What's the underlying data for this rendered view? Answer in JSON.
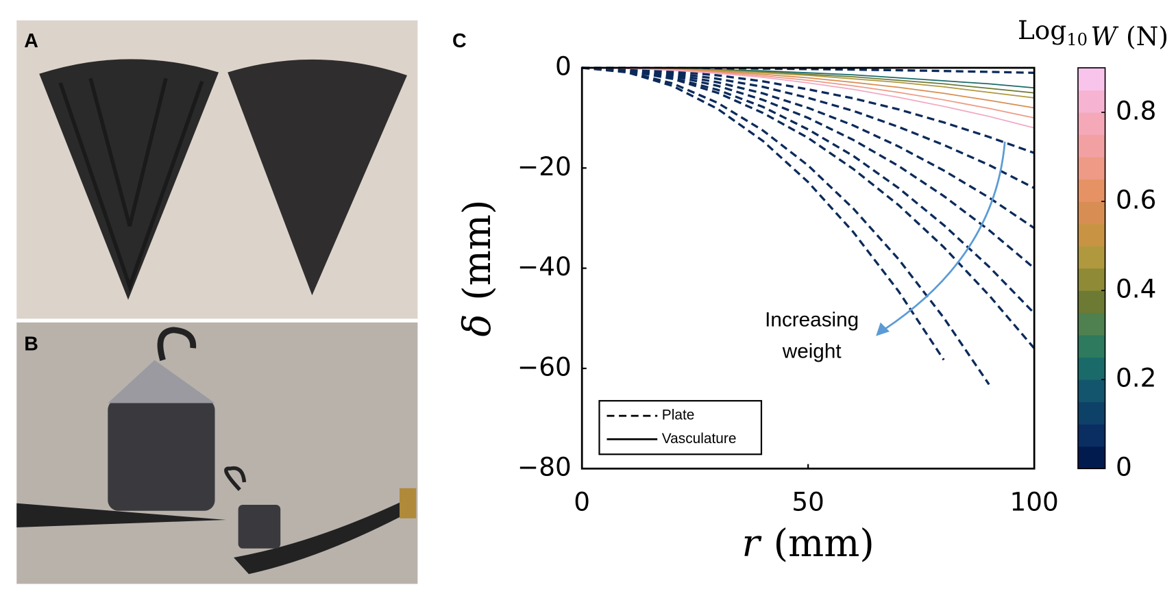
{
  "panels": {
    "a": "A",
    "b": "B",
    "c": "C"
  },
  "chart_data": {
    "type": "line",
    "x": [
      0,
      10,
      20,
      30,
      40,
      50,
      60,
      70,
      80,
      90,
      100
    ],
    "xlim": [
      0,
      100
    ],
    "ylim": [
      -80,
      0
    ],
    "xticks": [
      0,
      50,
      100
    ],
    "yticks": [
      0,
      {
        "value": -20,
        "label": "−20"
      },
      {
        "value": -40,
        "label": "−40"
      },
      {
        "value": -60,
        "label": "−60"
      },
      {
        "value": -80,
        "label": "−80"
      }
    ],
    "xlabel": {
      "italic": "r",
      "rest": "(mm)"
    },
    "ylabel": {
      "italic": "δ",
      "rest": "(mm)"
    },
    "series": [
      {
        "color": "#0b2a5a",
        "dash": true,
        "values": [
          0,
          -0.01,
          -0.04,
          -0.09,
          -0.16,
          -0.25,
          -0.36,
          -0.49,
          -0.64,
          -0.81,
          -1
        ]
      },
      {
        "color": "#0b2a5a",
        "dash": true,
        "values": [
          0,
          -0.2,
          -0.7,
          -1.5,
          -2.7,
          -4.3,
          -6.1,
          -8.3,
          -10.9,
          -13.8,
          -17
        ]
      },
      {
        "color": "#0b2a5a",
        "dash": true,
        "values": [
          0,
          -0.2,
          -1,
          -2.2,
          -3.8,
          -6,
          -8.6,
          -11.8,
          -15.4,
          -19.4,
          -24
        ]
      },
      {
        "color": "#0b2a5a",
        "dash": true,
        "values": [
          0,
          -0.3,
          -1.3,
          -2.9,
          -5.1,
          -8,
          -11.5,
          -15.7,
          -20.5,
          -25.9,
          -32
        ]
      },
      {
        "color": "#0b2a5a",
        "dash": true,
        "values": [
          0,
          -0.4,
          -1.6,
          -3.6,
          -6.4,
          -10,
          -14.4,
          -19.6,
          -25.6,
          -32.4,
          -40
        ]
      },
      {
        "color": "#0b2a5a",
        "dash": true,
        "values": [
          0,
          -0.5,
          -2,
          -4.4,
          -7.8,
          -12.3,
          -17.6,
          -24,
          -31.4,
          -39.7,
          -49
        ]
      },
      {
        "color": "#0b2a5a",
        "dash": true,
        "values": [
          0,
          -0.6,
          -2.2,
          -5,
          -9,
          -14,
          -20.2,
          -27.4,
          -35.8,
          -45.4,
          -56
        ]
      },
      {
        "color": "#0b2a5a",
        "dash": true,
        "values": [
          0,
          -0.8,
          -3.1,
          -7,
          -12.5,
          -19.5,
          -28.1,
          -38.2,
          -49.9,
          -63.2,
          null
        ]
      },
      {
        "color": "#0b2a5a",
        "dash": true,
        "values": [
          0,
          -0.9,
          -3.6,
          -8.2,
          -14.6,
          -22.8,
          -32.8,
          -44.6,
          -58.3,
          null,
          null
        ]
      },
      {
        "color": "#1a6a6a",
        "dash": false,
        "values": [
          0,
          0,
          -0.2,
          -0.4,
          -0.6,
          -1,
          -1.4,
          -2,
          -2.6,
          -3.2,
          -4
        ]
      },
      {
        "color": "#6c7a34",
        "dash": false,
        "values": [
          0,
          0,
          -0.2,
          -0.5,
          -0.8,
          -1.3,
          -1.8,
          -2.5,
          -3.2,
          -4.1,
          -5
        ]
      },
      {
        "color": "#b0983e",
        "dash": false,
        "values": [
          0,
          -0.1,
          -0.2,
          -0.5,
          -1,
          -1.5,
          -2.2,
          -2.9,
          -3.8,
          -4.9,
          -6
        ]
      },
      {
        "color": "#d88e52",
        "dash": false,
        "values": [
          0,
          -0.1,
          -0.3,
          -0.7,
          -1.3,
          -2,
          -2.9,
          -3.9,
          -5.1,
          -6.5,
          -8
        ]
      },
      {
        "color": "#ee9a86",
        "dash": false,
        "values": [
          0,
          -0.1,
          -0.4,
          -0.9,
          -1.6,
          -2.5,
          -3.6,
          -4.9,
          -6.4,
          -8.1,
          -10
        ]
      },
      {
        "color": "#f2a8c2",
        "dash": false,
        "values": [
          0,
          -0.1,
          -0.5,
          -1.1,
          -1.9,
          -3,
          -4.3,
          -5.9,
          -7.7,
          -9.7,
          -12
        ]
      }
    ],
    "legend": [
      {
        "label": "Plate",
        "dash": true
      },
      {
        "label": "Vasculature",
        "dash": false
      }
    ],
    "annotation": [
      "Increasing",
      "weight"
    ],
    "colorbar": {
      "label": {
        "pre": "Log",
        "sub": "10",
        "italic": "W",
        "rest": "(N)"
      },
      "lim": [
        0,
        0.9
      ],
      "ticks": [
        0,
        0.2,
        0.4,
        0.6,
        0.8
      ],
      "colors": [
        "#021b4f",
        "#0a2d62",
        "#0e4168",
        "#12556c",
        "#1a6a6a",
        "#2d7a5e",
        "#4e8050",
        "#6c7a34",
        "#8e8a36",
        "#b0983e",
        "#c89444",
        "#d88e52",
        "#e69264",
        "#ee9a86",
        "#f2a0a2",
        "#f4a8b8",
        "#f6b4d2",
        "#f8c4ec"
      ]
    }
  }
}
